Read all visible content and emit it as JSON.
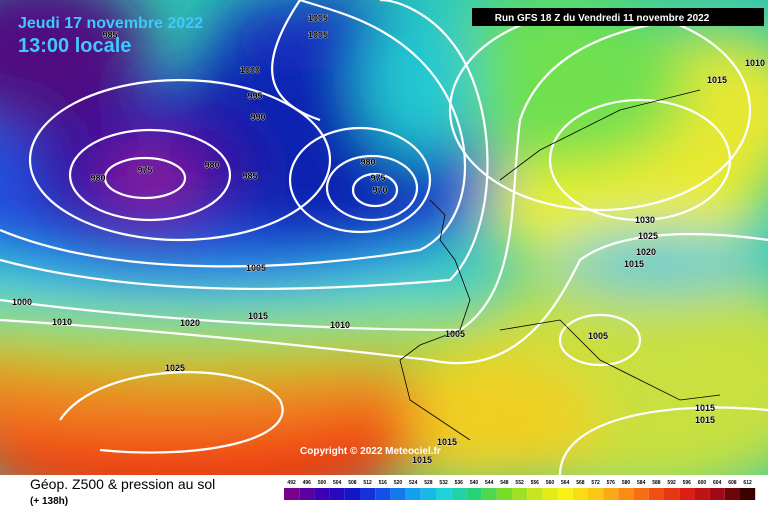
{
  "header": {
    "date": "Jeudi 17 novembre 2022",
    "time": "13:00 locale",
    "run": "Run GFS 18 Z du Vendredi 11 novembre 2022"
  },
  "copyright": "Copyright © 2022 Meteociel.fr",
  "footer": {
    "title": "Géop. Z500 & pression au sol",
    "lead": "(+ 138h)"
  },
  "isobar_labels": [
    "1005",
    "1005",
    "985",
    "1000",
    "995",
    "990",
    "975",
    "980",
    "980",
    "985",
    "980",
    "975",
    "970",
    "1005",
    "1000",
    "1010",
    "1020",
    "1015",
    "1010",
    "1005",
    "1025",
    "1015",
    "1010",
    "1030",
    "1025",
    "1020",
    "1015",
    "1005",
    "1015",
    "1015",
    "1015",
    "1015"
  ],
  "scale_labels": [
    "492",
    "496",
    "500",
    "504",
    "508",
    "512",
    "516",
    "520",
    "524",
    "528",
    "532",
    "536",
    "540",
    "544",
    "548",
    "552",
    "556",
    "560",
    "564",
    "568",
    "572",
    "576",
    "580",
    "584",
    "588",
    "592",
    "596",
    "600",
    "604",
    "608",
    "612"
  ]
}
